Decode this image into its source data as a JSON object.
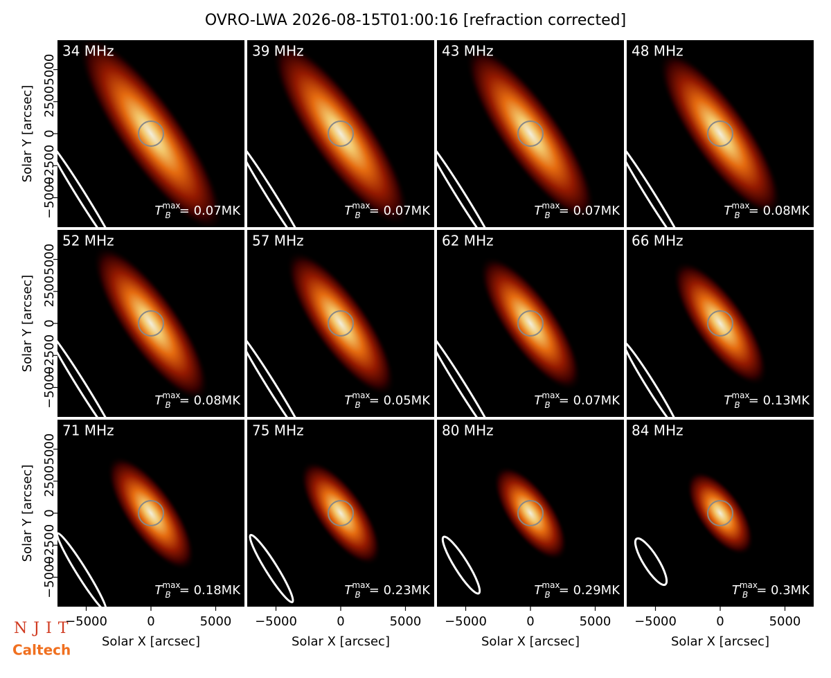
{
  "chart_data": {
    "type": "image",
    "title": "OVRO-LWA 2026-08-15T01:00:16 [refraction corrected]",
    "x_label": "Solar X [arcsec]",
    "y_label": "Solar Y [arcsec]",
    "xlim": [
      -7220,
      7220
    ],
    "ylim": [
      -7300,
      7300
    ],
    "xticks": [
      {
        "value": -5000,
        "label": "−5000"
      },
      0,
      5000
    ],
    "yticks": [
      {
        "value": -5000,
        "label": "−5000"
      },
      {
        "value": -2500,
        "label": "−2500"
      },
      0,
      2500,
      5000
    ],
    "tb_symbol": "T",
    "tb_sub": "B",
    "tb_sup": "max",
    "panels": [
      {
        "freq": "34 MHz",
        "tmax": "= 0.07MK"
      },
      {
        "freq": "39 MHz",
        "tmax": "= 0.07MK"
      },
      {
        "freq": "43 MHz",
        "tmax": "= 0.07MK"
      },
      {
        "freq": "48 MHz",
        "tmax": "= 0.08MK"
      },
      {
        "freq": "52 MHz",
        "tmax": "= 0.08MK"
      },
      {
        "freq": "57 MHz",
        "tmax": "= 0.05MK"
      },
      {
        "freq": "62 MHz",
        "tmax": "= 0.07MK"
      },
      {
        "freq": "66 MHz",
        "tmax": "= 0.13MK"
      },
      {
        "freq": "71 MHz",
        "tmax": "= 0.18MK"
      },
      {
        "freq": "75 MHz",
        "tmax": "= 0.23MK"
      },
      {
        "freq": "80 MHz",
        "tmax": "= 0.29MK"
      },
      {
        "freq": "84 MHz",
        "tmax": "= 0.3MK"
      }
    ],
    "logos": [
      "NJIT",
      "Caltech"
    ]
  }
}
